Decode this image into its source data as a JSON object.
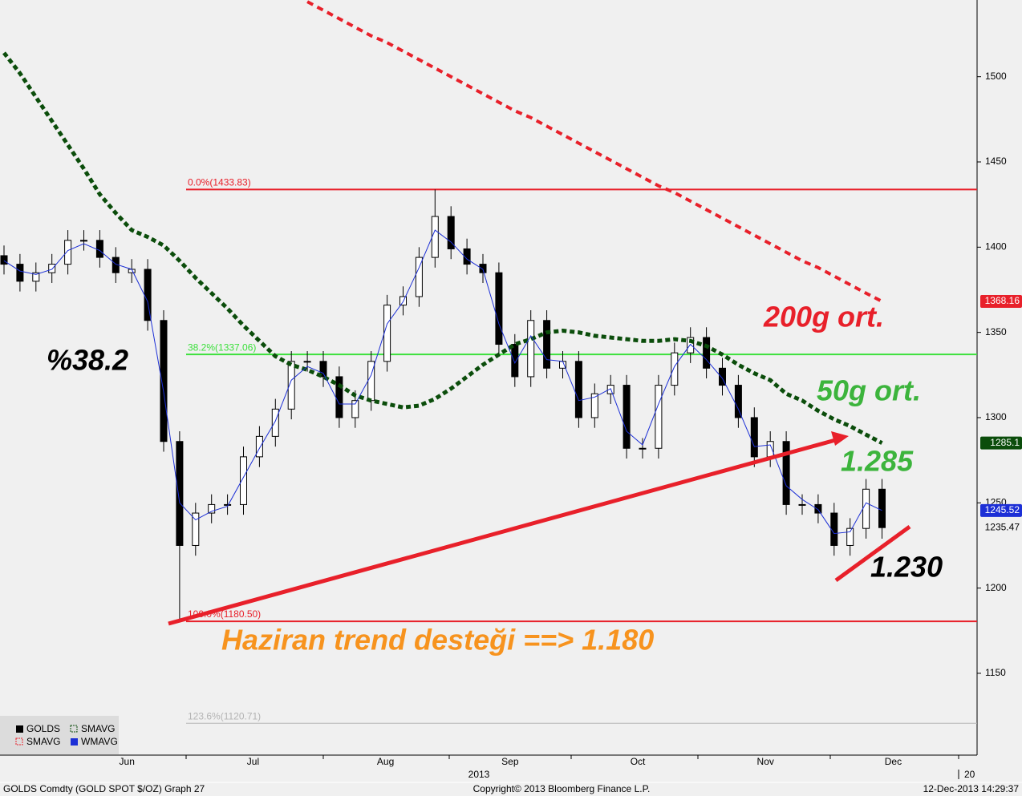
{
  "chart_data": {
    "type": "candlestick",
    "name": "GOLDS",
    "color": "#000000",
    "categories": [
      null,
      null,
      null,
      null,
      null,
      null,
      null,
      null,
      null,
      null,
      null,
      null,
      null,
      null,
      null,
      null,
      null,
      null,
      null,
      null,
      null,
      null,
      null,
      null,
      null,
      null,
      null,
      null,
      null,
      null,
      null,
      null,
      null,
      null,
      null,
      null,
      null,
      null,
      null,
      null,
      null,
      null,
      null,
      null,
      null,
      null,
      null,
      null,
      null,
      null,
      null,
      null,
      null,
      null,
      null,
      null
    ],
    "open": [
      1395,
      1390,
      1380,
      1385,
      1390,
      1404,
      1404,
      1394,
      1385,
      1387,
      1357,
      1286,
      1225,
      1244,
      1249,
      1249,
      1277,
      1289,
      1305,
      1333,
      1333,
      1324,
      1300,
      1310,
      1333,
      1366,
      1371,
      1394,
      1418,
      1399,
      1390,
      1385,
      1343,
      1324,
      1357,
      1329,
      1333,
      1300,
      1314,
      1319,
      1282,
      1282,
      1319,
      1338,
      1347,
      1329,
      1319,
      1300,
      1277,
      1286,
      1249,
      1249,
      1244,
      1225,
      1235,
      1258
    ],
    "high": [
      1401,
      1396,
      1391,
      1396,
      1410,
      1410,
      1410,
      1400,
      1393,
      1393,
      1363,
      1292,
      1250,
      1255,
      1255,
      1283,
      1295,
      1311,
      1339,
      1339,
      1339,
      1330,
      1316,
      1339,
      1372,
      1377,
      1400,
      1433.83,
      1424,
      1405,
      1396,
      1391,
      1349,
      1363,
      1363,
      1339,
      1339,
      1320,
      1325,
      1325,
      1288,
      1325,
      1344,
      1353,
      1353,
      1335,
      1325,
      1306,
      1292,
      1292,
      1255,
      1255,
      1250,
      1241,
      1264,
      1264
    ],
    "low": [
      1384,
      1374,
      1374,
      1379,
      1384,
      1398,
      1388,
      1379,
      1379,
      1351,
      1280,
      1180.5,
      1219,
      1238,
      1243,
      1243,
      1271,
      1283,
      1299,
      1327,
      1318,
      1294,
      1294,
      1304,
      1327,
      1360,
      1365,
      1388,
      1393,
      1384,
      1379,
      1337,
      1318,
      1318,
      1323,
      1323,
      1294,
      1294,
      1308,
      1276,
      1276,
      1276,
      1313,
      1332,
      1323,
      1313,
      1294,
      1271,
      1271,
      1243,
      1243,
      1238,
      1219,
      1219,
      1229,
      1229
    ],
    "close": [
      1390,
      1380,
      1385,
      1390,
      1404,
      1404,
      1394,
      1385,
      1387,
      1357,
      1286,
      1225,
      1244,
      1249,
      1249,
      1277,
      1289,
      1305,
      1333,
      1333,
      1324,
      1300,
      1310,
      1333,
      1366,
      1371,
      1394,
      1418,
      1399,
      1390,
      1385,
      1343,
      1324,
      1357,
      1329,
      1333,
      1300,
      1314,
      1319,
      1282,
      1282,
      1319,
      1338,
      1347,
      1329,
      1319,
      1300,
      1277,
      1286,
      1249,
      1249,
      1244,
      1225,
      1235,
      1258,
      1235.47
    ],
    "series": [
      {
        "name": "SMAVG",
        "color": "#0b4d0b",
        "values": [
          1514,
          1502,
          1488,
          1474,
          1460,
          1446,
          1431,
          1420,
          1410,
          1406,
          1401,
          1392,
          1382,
          1373,
          1364,
          1354,
          1345,
          1336,
          1331,
          1328,
          1324,
          1319,
          1313,
          1310,
          1308,
          1306,
          1307,
          1311,
          1317,
          1324,
          1331,
          1337,
          1343,
          1346,
          1350,
          1351,
          1350,
          1348,
          1347,
          1346,
          1345,
          1345,
          1346,
          1345,
          1342,
          1337,
          1331,
          1326,
          1322,
          1314,
          1310,
          1304,
          1299,
          1295,
          1290,
          1285.1
        ]
      },
      {
        "name": "SMAVG",
        "color": "#e8202a",
        "values": [
          null,
          null,
          null,
          null,
          null,
          null,
          null,
          null,
          null,
          null,
          null,
          null,
          null,
          null,
          null,
          null,
          null,
          null,
          null,
          1544,
          1539,
          1534,
          1529,
          1524,
          1520,
          1515,
          1510,
          1505,
          1500,
          1495,
          1490,
          1485,
          1480,
          1476,
          1471,
          1466,
          1461,
          1456,
          1451,
          1446,
          1441,
          1436,
          1432,
          1427,
          1422,
          1417,
          1412,
          1407,
          1402,
          1397,
          1392,
          1388,
          1383,
          1378,
          1373,
          1368.16
        ]
      },
      {
        "name": "WMAVG",
        "color": "#1c2fd6",
        "values": [
          1392,
          1386,
          1384,
          1387,
          1398,
          1402,
          1398,
          1390,
          1387,
          1368,
          1315,
          1250,
          1240,
          1245,
          1248,
          1265,
          1282,
          1298,
          1322,
          1330,
          1326,
          1308,
          1308,
          1325,
          1355,
          1368,
          1388,
          1410,
          1403,
          1393,
          1387,
          1355,
          1332,
          1348,
          1334,
          1333,
          1310,
          1312,
          1317,
          1292,
          1284,
          1308,
          1330,
          1343,
          1334,
          1323,
          1305,
          1283,
          1284,
          1260,
          1252,
          1246,
          1232,
          1233,
          1250,
          1245.52
        ]
      }
    ],
    "ylim": [
      1102,
      1545
    ],
    "yticks": [
      1150,
      1200,
      1250,
      1300,
      1350,
      1400,
      1450,
      1500
    ],
    "xticks": [
      {
        "value": 7.7,
        "label": "Jun"
      },
      {
        "value": 15.6,
        "label": "Jul"
      },
      {
        "value": 23.9,
        "label": "Aug"
      },
      {
        "value": 31.7,
        "label": "Sep"
      },
      {
        "value": 39.7,
        "label": "Oct"
      },
      {
        "value": 47.7,
        "label": "Nov"
      },
      {
        "value": 55.7,
        "label": "Dec"
      }
    ],
    "x_year_labels": [
      "2013",
      "20"
    ],
    "fib_levels": [
      {
        "label": "0.0%(1433.83)",
        "value": 1433.83,
        "color": "#e8202a"
      },
      {
        "label": "38.2%(1337.06)",
        "value": 1337.06,
        "color": "#3ce03c"
      },
      {
        "label": "100.0%(1180.50)",
        "value": 1180.5,
        "color": "#e8202a"
      },
      {
        "label": "123.6%(1120.71)",
        "value": 1120.71,
        "color": "#b4b4b4"
      }
    ],
    "annotations": [
      {
        "text": "%38.2",
        "color": "#000000"
      },
      {
        "text": "200g ort.",
        "color": "#e8202a"
      },
      {
        "text": "50g ort.",
        "color": "#3cb43c"
      },
      {
        "text": "1.285",
        "color": "#3cb43c"
      },
      {
        "text": "1.230",
        "color": "#000000"
      },
      {
        "text": "Haziran trend desteği ==> 1.180",
        "color": "#f7931e"
      }
    ]
  },
  "footer": {
    "left": "GOLDS Comdty (GOLD SPOT $/OZ) Graph 27",
    "center": "Copyright© 2013 Bloomberg Finance L.P.",
    "right": "12-Dec-2013 14:29:37"
  }
}
